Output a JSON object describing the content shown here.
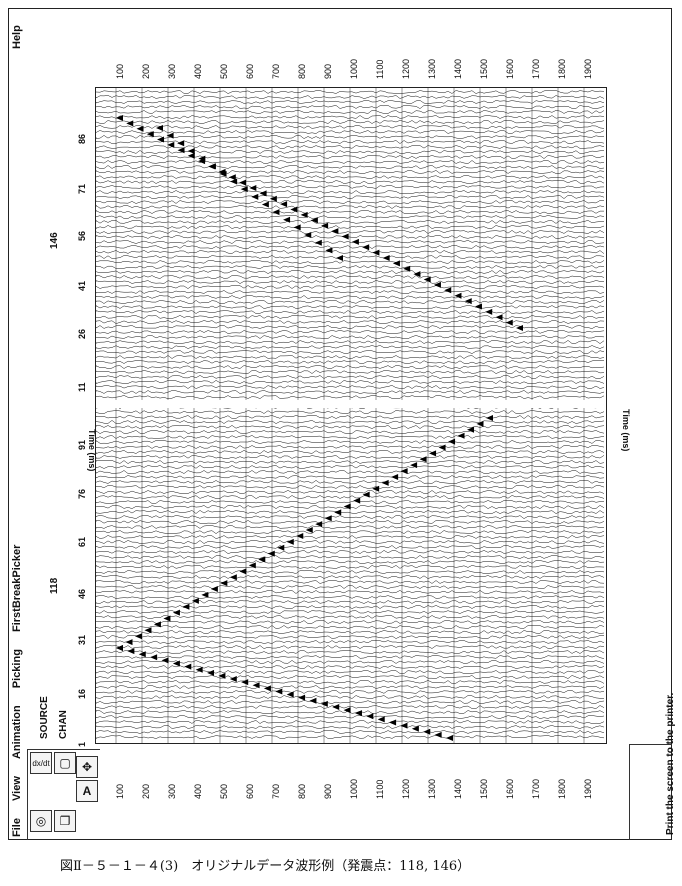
{
  "menu": {
    "file": "File",
    "view": "View",
    "animation": "Animation",
    "picking": "Picking",
    "firstbreak": "FirstBreakPicker",
    "help": "Help"
  },
  "header": {
    "source_label": "SOURCE",
    "chan_label": "CHAN",
    "source_a": "118",
    "source_b": "146"
  },
  "channel_ticks": [
    "1",
    "16",
    "31",
    "46",
    "61",
    "76",
    "91",
    "11",
    "26",
    "41",
    "56",
    "71",
    "86"
  ],
  "time_ticks": [
    "100",
    "200",
    "300",
    "400",
    "500",
    "600",
    "700",
    "800",
    "900",
    "1000",
    "1100",
    "1200",
    "1300",
    "1400",
    "1500",
    "1600",
    "1700",
    "1800",
    "1900"
  ],
  "axis_title": "Time (ms)",
  "status_text": "Print the screen to the printer.",
  "caption": "図Ⅱ－５－１－４(3)　オリジナルデータ波形例（発震点：118, 146）",
  "toolbar_icons": [
    "oscilloscope-icon",
    "copy-windows-icon",
    "move-cross-icon",
    "text-a-icon",
    "dx-dt-icon",
    "zoom-box-icon"
  ]
}
